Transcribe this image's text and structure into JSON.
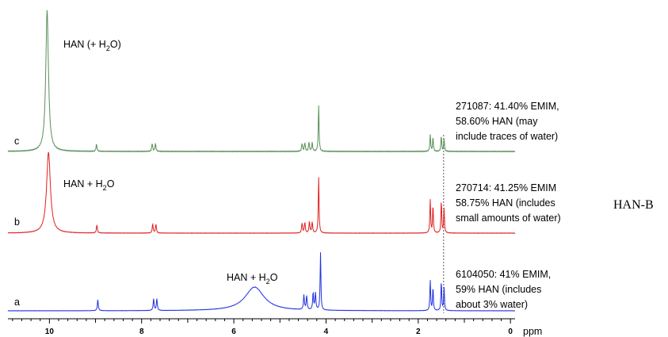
{
  "chart_data": {
    "type": "line",
    "xlabel": "ppm",
    "xlim": [
      10.9,
      -0.1
    ],
    "x_reversed": true,
    "xticks": [
      10,
      8,
      6,
      4,
      2,
      0
    ],
    "reference_line_ppm": 1.45,
    "series": [
      {
        "name": "c",
        "color": "#5a8f5a",
        "sample_text": [
          "271087: 41.40% EMIM,",
          "58.60% HAN (may",
          "include traces of water)"
        ],
        "annotation": {
          "pre": "HAN (+ H",
          "sub": "2",
          "post": "O)"
        },
        "peaks": [
          {
            "ppm": 10.05,
            "height": 1.0,
            "width": 0.035
          },
          {
            "ppm": 8.98,
            "height": 0.05,
            "width": 0.012
          },
          {
            "ppm": 7.77,
            "height": 0.055,
            "width": 0.012
          },
          {
            "ppm": 7.7,
            "height": 0.055,
            "width": 0.012
          },
          {
            "ppm": 4.52,
            "height": 0.055,
            "width": 0.012
          },
          {
            "ppm": 4.46,
            "height": 0.06,
            "width": 0.012
          },
          {
            "ppm": 4.37,
            "height": 0.065,
            "width": 0.012
          },
          {
            "ppm": 4.3,
            "height": 0.06,
            "width": 0.012
          },
          {
            "ppm": 4.16,
            "height": 0.33,
            "width": 0.01
          },
          {
            "ppm": 1.74,
            "height": 0.12,
            "width": 0.01
          },
          {
            "ppm": 1.68,
            "height": 0.1,
            "width": 0.01
          },
          {
            "ppm": 1.5,
            "height": 0.11,
            "width": 0.01
          },
          {
            "ppm": 1.44,
            "height": 0.09,
            "width": 0.01
          }
        ]
      },
      {
        "name": "b",
        "color": "#e02020",
        "sample_text": [
          "270714: 41.25% EMIM",
          "58.75% HAN (includes",
          "small amounts of water)"
        ],
        "annotation": {
          "pre": "HAN + H",
          "sub": "2",
          "post": "O"
        },
        "peaks": [
          {
            "ppm": 10.02,
            "height": 1.0,
            "width": 0.05
          },
          {
            "ppm": 8.97,
            "height": 0.1,
            "width": 0.012
          },
          {
            "ppm": 7.76,
            "height": 0.11,
            "width": 0.012
          },
          {
            "ppm": 7.69,
            "height": 0.11,
            "width": 0.012
          },
          {
            "ppm": 4.52,
            "height": 0.12,
            "width": 0.012
          },
          {
            "ppm": 4.46,
            "height": 0.13,
            "width": 0.012
          },
          {
            "ppm": 4.36,
            "height": 0.14,
            "width": 0.012
          },
          {
            "ppm": 4.3,
            "height": 0.13,
            "width": 0.012
          },
          {
            "ppm": 4.16,
            "height": 0.7,
            "width": 0.01
          },
          {
            "ppm": 1.74,
            "height": 0.42,
            "width": 0.01
          },
          {
            "ppm": 1.68,
            "height": 0.34,
            "width": 0.01
          },
          {
            "ppm": 1.5,
            "height": 0.4,
            "width": 0.01
          },
          {
            "ppm": 1.44,
            "height": 0.3,
            "width": 0.01
          }
        ]
      },
      {
        "name": "a",
        "color": "#2030e0",
        "sample_text": [
          "6104050: 41% EMIM,",
          "59% HAN (includes",
          "about 3% water)"
        ],
        "annotation": {
          "pre": "HAN + H",
          "sub": "2",
          "post": "O"
        },
        "peaks": [
          {
            "ppm": 8.95,
            "height": 0.19,
            "width": 0.012
          },
          {
            "ppm": 7.74,
            "height": 0.2,
            "width": 0.012
          },
          {
            "ppm": 7.67,
            "height": 0.2,
            "width": 0.012
          },
          {
            "ppm": 5.55,
            "height": 0.41,
            "width": 0.25
          },
          {
            "ppm": 4.48,
            "height": 0.25,
            "width": 0.012
          },
          {
            "ppm": 4.42,
            "height": 0.24,
            "width": 0.012
          },
          {
            "ppm": 4.28,
            "height": 0.29,
            "width": 0.012
          },
          {
            "ppm": 4.23,
            "height": 0.29,
            "width": 0.012
          },
          {
            "ppm": 4.12,
            "height": 1.0,
            "width": 0.01
          },
          {
            "ppm": 1.74,
            "height": 0.53,
            "width": 0.01
          },
          {
            "ppm": 1.68,
            "height": 0.4,
            "width": 0.01
          },
          {
            "ppm": 1.5,
            "height": 0.5,
            "width": 0.01
          },
          {
            "ppm": 1.44,
            "height": 0.39,
            "width": 0.01
          }
        ]
      }
    ]
  },
  "side_label": "HAN-B"
}
